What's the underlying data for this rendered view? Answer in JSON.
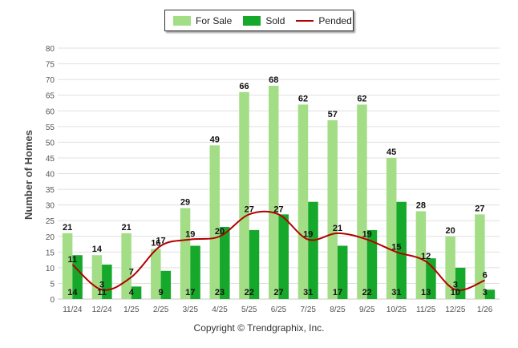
{
  "colors": {
    "for_sale": "#a3de87",
    "sold": "#16a82a",
    "pended": "#b40000",
    "grid": "#e0e0e0",
    "axis_text": "#555555"
  },
  "legend": {
    "for_sale": "For Sale",
    "sold": "Sold",
    "pended": "Pended"
  },
  "copyright": "Copyright © Trendgraphix, Inc.",
  "chart_data": {
    "type": "bar",
    "categories": [
      "11/24",
      "12/24",
      "1/25",
      "2/25",
      "3/25",
      "4/25",
      "5/25",
      "6/25",
      "7/25",
      "8/25",
      "9/25",
      "10/25",
      "11/25",
      "12/25",
      "1/26"
    ],
    "series": [
      {
        "name": "For Sale",
        "kind": "bar",
        "values": [
          21,
          14,
          21,
          16,
          29,
          49,
          66,
          68,
          62,
          57,
          62,
          45,
          28,
          20,
          27
        ]
      },
      {
        "name": "Sold",
        "kind": "bar",
        "values": [
          14,
          11,
          4,
          9,
          17,
          23,
          22,
          27,
          31,
          17,
          22,
          31,
          13,
          10,
          3
        ]
      },
      {
        "name": "Pended",
        "kind": "line",
        "values": [
          11,
          3,
          7,
          17,
          19,
          20,
          27,
          27,
          19,
          21,
          19,
          15,
          12,
          3,
          6
        ]
      }
    ],
    "ylabel": "Number of Homes",
    "xlabel": "",
    "ylim": [
      0,
      80
    ],
    "yticks": [
      0,
      5,
      10,
      15,
      20,
      25,
      30,
      35,
      40,
      45,
      50,
      55,
      60,
      65,
      70,
      75,
      80
    ],
    "grid": true,
    "legend_position": "top-center"
  }
}
